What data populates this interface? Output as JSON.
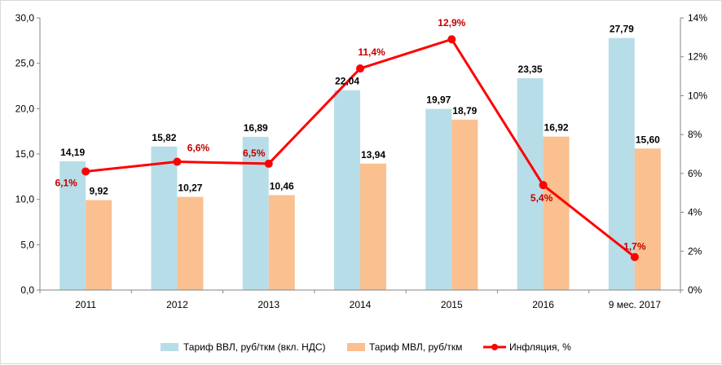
{
  "chart_data": {
    "type": "bar",
    "categories": [
      "2011",
      "2012",
      "2013",
      "2014",
      "2015",
      "2016",
      "9 мес. 2017"
    ],
    "series": [
      {
        "name": "Тариф ВВЛ, руб/ткм (вкл. НДС)",
        "kind": "bar",
        "axis": "left",
        "color": "#b7dde8",
        "values": [
          14.19,
          15.82,
          16.89,
          22.04,
          19.97,
          23.35,
          27.79
        ],
        "labels": [
          "14,19",
          "15,82",
          "16,89",
          "22,04",
          "19,97",
          "23,35",
          "27,79"
        ]
      },
      {
        "name": "Тариф МВЛ, руб/ткм",
        "kind": "bar",
        "axis": "left",
        "color": "#fac090",
        "values": [
          9.92,
          10.27,
          10.46,
          13.94,
          18.79,
          16.92,
          15.6
        ],
        "labels": [
          "9,92",
          "10,27",
          "10,46",
          "13,94",
          "18,79",
          "16,92",
          "15,60"
        ]
      },
      {
        "name": "Инфляция, %",
        "kind": "line",
        "axis": "right",
        "color": "#ff0000",
        "values": [
          6.1,
          6.6,
          6.5,
          11.4,
          12.9,
          5.4,
          1.7
        ],
        "labels": [
          "6,1%",
          "6,6%",
          "6,5%",
          "11,4%",
          "12,9%",
          "5,4%",
          "1,7%"
        ]
      }
    ],
    "y_left": {
      "ylim": [
        0,
        30
      ],
      "ticks": [
        0,
        5,
        10,
        15,
        20,
        25,
        30
      ],
      "tick_labels": [
        "0,0",
        "5,0",
        "10,0",
        "15,0",
        "20,0",
        "25,0",
        "30,0"
      ]
    },
    "y_right": {
      "ylim": [
        0,
        14
      ],
      "ticks": [
        0,
        2,
        4,
        6,
        8,
        10,
        12,
        14
      ],
      "tick_labels": [
        "0%",
        "2%",
        "4%",
        "6%",
        "8%",
        "10%",
        "12%",
        "14%"
      ]
    },
    "grid": false,
    "legend_position": "bottom",
    "title": "",
    "xlabel": "",
    "ylabel": ""
  }
}
